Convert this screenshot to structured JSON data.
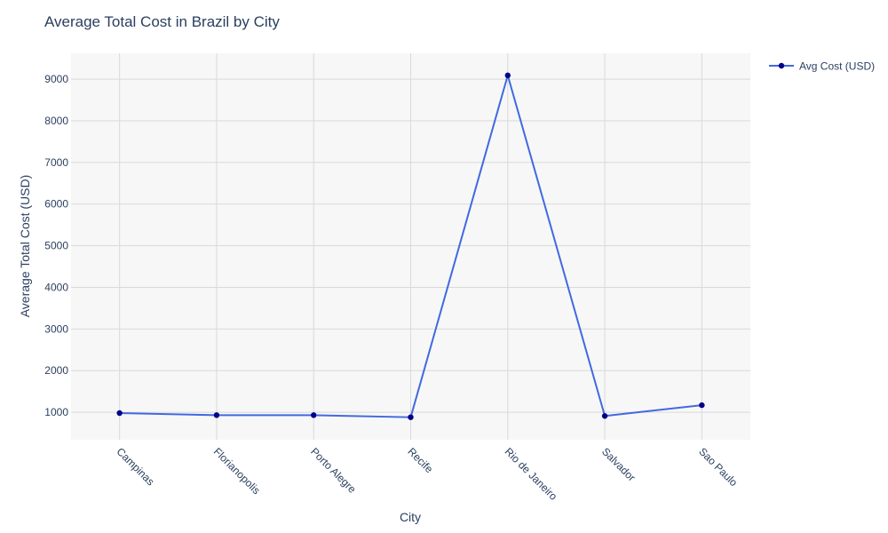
{
  "chart_data": {
    "type": "line",
    "title": "Average Total Cost in Brazil by City",
    "xlabel": "City",
    "ylabel": "Average Total Cost (USD)",
    "categories": [
      "Campinas",
      "Florianopolis",
      "Porto Alegre",
      "Recife",
      "Rio de Janeiro",
      "Salvador",
      "Sao Paulo"
    ],
    "series": [
      {
        "name": "Avg Cost (USD)",
        "values": [
          980,
          930,
          930,
          880,
          9090,
          910,
          1170
        ]
      }
    ],
    "yticks": [
      1000,
      2000,
      3000,
      4000,
      5000,
      6000,
      7000,
      8000,
      9000
    ],
    "ylim": [
      340,
      9620
    ],
    "grid": true,
    "legend_position": "top-right",
    "colors": {
      "line": "#4169e1",
      "marker": "#00008b",
      "plot_bg": "#f7f7f7",
      "grid": "#d9d9d9",
      "text": "#2a3f5f"
    }
  }
}
